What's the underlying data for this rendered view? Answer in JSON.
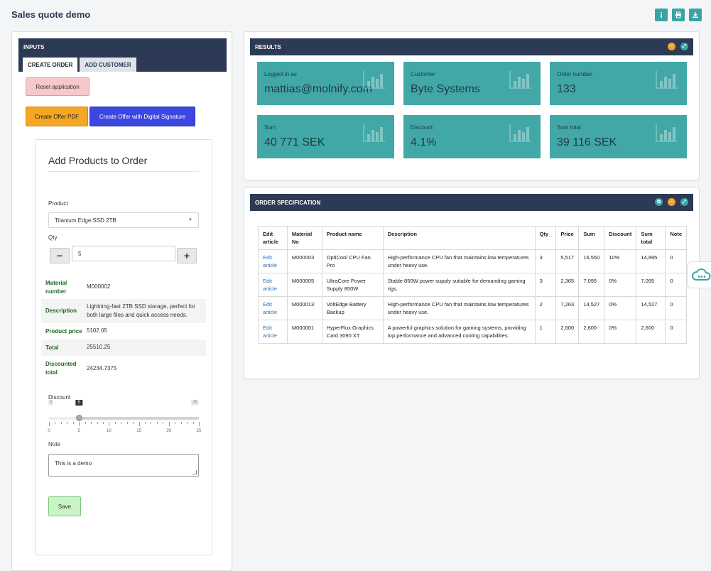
{
  "app": {
    "title": "Sales quote demo",
    "top_actions": [
      {
        "icon": "info-icon"
      },
      {
        "icon": "print-icon"
      },
      {
        "icon": "download-icon"
      }
    ]
  },
  "inputs": {
    "header": "INPUTS",
    "tabs": [
      {
        "label": "CREATE ORDER",
        "active": true
      },
      {
        "label": "ADD CUSTOMER",
        "active": false
      }
    ],
    "reset_label": "Reset application",
    "create_pdf_label": "Create Offer PDF",
    "create_sign_label": "Create Offer with Digital Signature",
    "products": {
      "title": "Add Products to Order",
      "product_label": "Product",
      "product_value": "Titanium Edge SSD 2TB",
      "qty_label": "Qty",
      "qty_value": "5",
      "minus": "−",
      "plus": "+",
      "info": [
        {
          "key": "Material number",
          "value": "M000002"
        },
        {
          "key": "Description",
          "value": "Lightning-fast 2TB SSD storage, perfect for both large files and quick access needs."
        },
        {
          "key": "Product price",
          "value": "5102.05"
        },
        {
          "key": "Total",
          "value": "25510.25"
        },
        {
          "key": "Discounted total",
          "value": "24234.7375"
        }
      ],
      "discount_label": "Discount",
      "discount": {
        "min": "0",
        "max": "25",
        "value": "5",
        "ticks": [
          "0",
          "5",
          "10",
          "15",
          "20",
          "25"
        ]
      },
      "note_label": "Note",
      "note_value": "This is a demo",
      "save_label": "Save"
    }
  },
  "results": {
    "header": "RESULTS",
    "kpis": [
      {
        "title": "Logged in as",
        "value": "mattias@molnify.com"
      },
      {
        "title": "Customer",
        "value": "Byte Systems"
      },
      {
        "title": "Order number",
        "value": "133"
      },
      {
        "title": "Sum",
        "value": "40 771 SEK"
      },
      {
        "title": "Discount",
        "value": "4.1%"
      },
      {
        "title": "Sum total",
        "value": "39 116 SEK"
      }
    ]
  },
  "order_spec": {
    "header": "ORDER SPECIFICATION",
    "columns": [
      "Edit article",
      "Material No",
      "Product name",
      "Description",
      "Qty_",
      "Price",
      "Sum",
      "Discount",
      "Sum total",
      "Note"
    ],
    "rows": [
      {
        "edit": "Edit article",
        "material": "M000003",
        "name": "OptiCool CPU Fan Pro",
        "description": "High-performance CPU fan that maintains low temperatures under heavy use.",
        "qty": "3",
        "price": "5,517",
        "sum": "16,550",
        "discount": "10%",
        "sum_total": "14,895",
        "note": "0"
      },
      {
        "edit": "Edit article",
        "material": "M000005",
        "name": "UltraCore Power Supply 850W",
        "description": "Stable 850W power supply suitable for demanding gaming rigs.",
        "qty": "3",
        "price": "2,365",
        "sum": "7,095",
        "discount": "0%",
        "sum_total": "7,095",
        "note": "0"
      },
      {
        "edit": "Edit article",
        "material": "M000013",
        "name": "VoltEdge Battery Backup",
        "description": "High-performance CPU fan that maintains low temperatures under heavy use.",
        "qty": "2",
        "price": "7,263",
        "sum": "14,527",
        "discount": "0%",
        "sum_total": "14,527",
        "note": "0"
      },
      {
        "edit": "Edit article",
        "material": "M000001",
        "name": "HyperFlux Graphics Card 3090 XT",
        "description": "A powerful graphics solution for gaming systems, providing top performance and advanced cooling capabilities.",
        "qty": "1",
        "price": "2,600",
        "sum": "2,600",
        "discount": "0%",
        "sum_total": "2,600",
        "note": "0"
      }
    ]
  },
  "side": {
    "cloud_icon": "cloud-icon"
  }
}
